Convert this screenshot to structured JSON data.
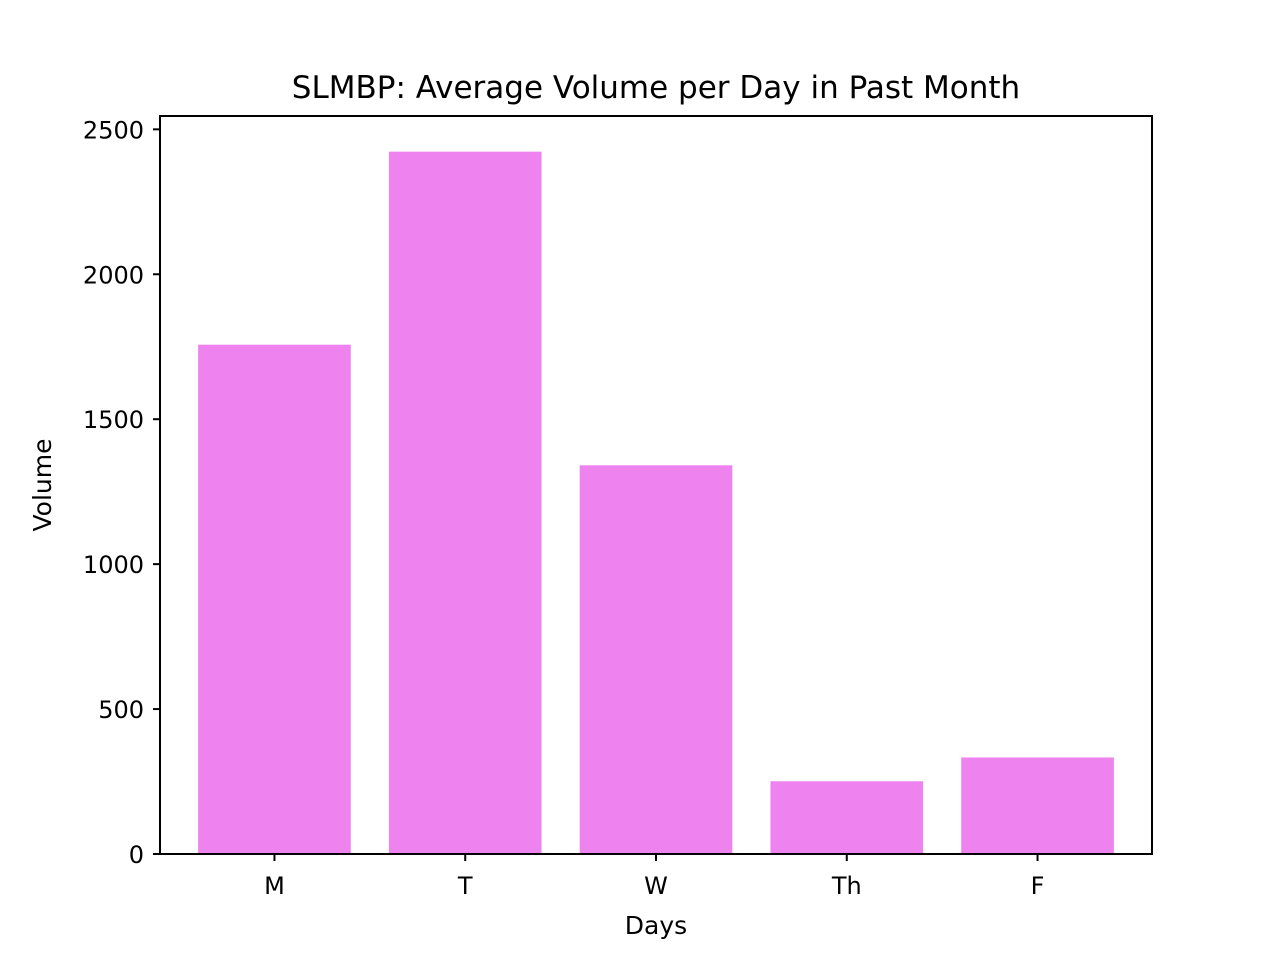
{
  "chart_data": {
    "type": "bar",
    "title": "SLMBP: Average Volume per Day in Past Month",
    "xlabel": "Days",
    "ylabel": "Volume",
    "categories": [
      "M",
      "T",
      "W",
      "Th",
      "F"
    ],
    "values": [
      1757,
      2423,
      1341,
      251,
      333
    ],
    "ylim": [
      0,
      2546
    ],
    "yticks": [
      0,
      500,
      1000,
      1500,
      2000,
      2500
    ],
    "bar_color": "#ee82ee",
    "grid": false,
    "legend": "none"
  }
}
